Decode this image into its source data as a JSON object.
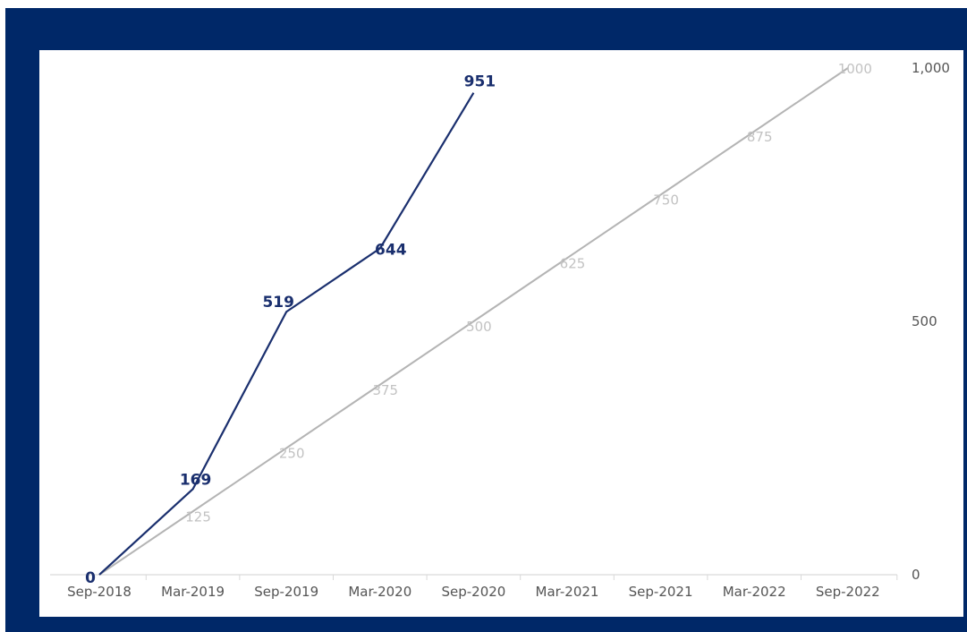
{
  "chart_data": {
    "type": "line",
    "categories": [
      "Sep-2018",
      "Mar-2019",
      "Sep-2019",
      "Mar-2020",
      "Sep-2020",
      "Mar-2021",
      "Sep-2021",
      "Mar-2022",
      "Sep-2022"
    ],
    "y_ticks": [
      "0",
      "500",
      "1,000"
    ],
    "ylim": [
      0,
      1000
    ],
    "y_axis_position": "right",
    "grid": false,
    "legend": "none",
    "series": [
      {
        "key": "actual",
        "color": "#1a2f6e",
        "points": [
          {
            "x": "Sep-2018",
            "y": 0,
            "label": "0"
          },
          {
            "x": "Mar-2019",
            "y": 169,
            "label": "169"
          },
          {
            "x": "Sep-2019",
            "y": 519,
            "label": "519"
          },
          {
            "x": "Mar-2020",
            "y": 644,
            "label": "644"
          },
          {
            "x": "Sep-2020",
            "y": 951,
            "label": "951"
          }
        ]
      },
      {
        "key": "target",
        "color": "#b4b4b4",
        "points": [
          {
            "x": "Sep-2018",
            "y": 0,
            "label": ""
          },
          {
            "x": "Mar-2019",
            "y": 125,
            "label": "125"
          },
          {
            "x": "Sep-2019",
            "y": 250,
            "label": "250"
          },
          {
            "x": "Mar-2020",
            "y": 375,
            "label": "375"
          },
          {
            "x": "Sep-2020",
            "y": 500,
            "label": "500"
          },
          {
            "x": "Mar-2021",
            "y": 625,
            "label": "625"
          },
          {
            "x": "Sep-2021",
            "y": 750,
            "label": "750"
          },
          {
            "x": "Mar-2022",
            "y": 875,
            "label": "875"
          },
          {
            "x": "Sep-2022",
            "y": 1000,
            "label": "1000"
          }
        ]
      }
    ]
  },
  "colors": {
    "frame": "#002868",
    "panel": "#ffffff",
    "axis": "#d9d9d9"
  }
}
